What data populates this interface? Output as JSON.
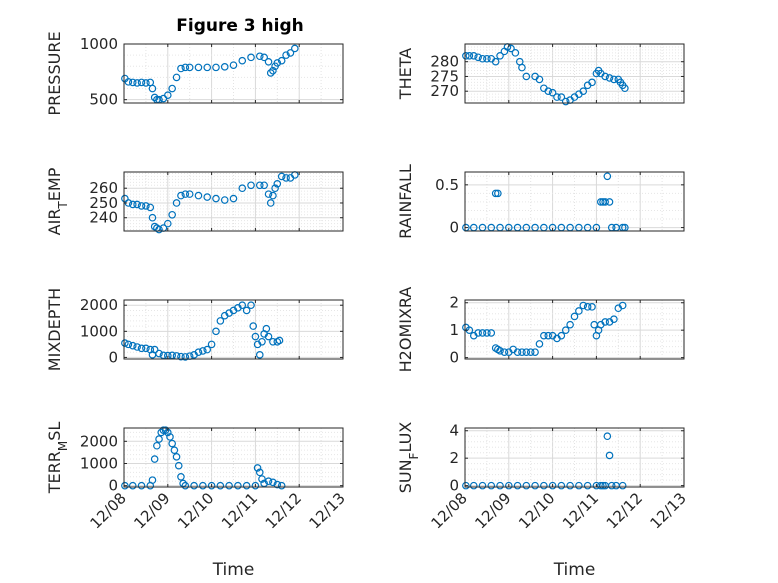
{
  "figure_title": "Figure 3 high",
  "chart_data": [
    {
      "type": "scatter",
      "ylabel": "PRESSURE",
      "ylim": [
        470,
        1000
      ],
      "yticks": [
        500,
        1000
      ],
      "xlim": [
        0,
        5
      ],
      "x_tick_labels": [
        "12/08",
        "12/09",
        "12/10",
        "12/11",
        "12/12",
        "12/13"
      ],
      "xlabel": "",
      "grid": true,
      "points": [
        [
          0.02,
          690
        ],
        [
          0.1,
          660
        ],
        [
          0.2,
          655
        ],
        [
          0.3,
          650
        ],
        [
          0.4,
          655
        ],
        [
          0.5,
          650
        ],
        [
          0.6,
          655
        ],
        [
          0.65,
          600
        ],
        [
          0.7,
          520
        ],
        [
          0.75,
          500
        ],
        [
          0.8,
          500
        ],
        [
          0.9,
          510
        ],
        [
          1.0,
          540
        ],
        [
          1.1,
          600
        ],
        [
          1.2,
          700
        ],
        [
          1.3,
          780
        ],
        [
          1.4,
          790
        ],
        [
          1.5,
          790
        ],
        [
          1.7,
          790
        ],
        [
          1.9,
          790
        ],
        [
          2.1,
          790
        ],
        [
          2.3,
          795
        ],
        [
          2.5,
          810
        ],
        [
          2.7,
          850
        ],
        [
          2.9,
          880
        ],
        [
          3.1,
          890
        ],
        [
          3.2,
          880
        ],
        [
          3.3,
          840
        ],
        [
          3.35,
          740
        ],
        [
          3.4,
          760
        ],
        [
          3.45,
          800
        ],
        [
          3.5,
          830
        ],
        [
          3.6,
          850
        ],
        [
          3.7,
          900
        ],
        [
          3.8,
          920
        ],
        [
          3.9,
          960
        ]
      ]
    },
    {
      "type": "scatter",
      "ylabel": "THETA",
      "ylim": [
        266,
        286
      ],
      "yticks": [
        270,
        275,
        280
      ],
      "xlim": [
        0,
        5
      ],
      "x_tick_labels": [
        "12/08",
        "12/09",
        "12/10",
        "12/11",
        "12/12",
        "12/13"
      ],
      "xlabel": "",
      "grid": true,
      "points": [
        [
          0.02,
          282
        ],
        [
          0.1,
          282
        ],
        [
          0.2,
          282
        ],
        [
          0.3,
          281.5
        ],
        [
          0.4,
          281
        ],
        [
          0.5,
          281
        ],
        [
          0.6,
          281
        ],
        [
          0.7,
          280
        ],
        [
          0.8,
          282
        ],
        [
          0.9,
          283.5
        ],
        [
          0.97,
          285
        ],
        [
          1.05,
          284.5
        ],
        [
          1.15,
          283
        ],
        [
          1.25,
          280
        ],
        [
          1.3,
          278
        ],
        [
          1.4,
          275
        ],
        [
          1.6,
          275
        ],
        [
          1.7,
          274
        ],
        [
          1.8,
          271
        ],
        [
          1.9,
          270
        ],
        [
          2.0,
          269.5
        ],
        [
          2.1,
          268
        ],
        [
          2.2,
          268
        ],
        [
          2.3,
          266.5
        ],
        [
          2.4,
          267
        ],
        [
          2.5,
          268
        ],
        [
          2.6,
          269
        ],
        [
          2.7,
          270
        ],
        [
          2.8,
          272
        ],
        [
          2.9,
          273
        ],
        [
          3.0,
          276
        ],
        [
          3.05,
          277
        ],
        [
          3.1,
          276
        ],
        [
          3.2,
          275
        ],
        [
          3.3,
          274.5
        ],
        [
          3.4,
          274
        ],
        [
          3.5,
          274
        ],
        [
          3.55,
          273
        ],
        [
          3.6,
          272
        ],
        [
          3.65,
          271
        ]
      ]
    },
    {
      "type": "scatter",
      "ylabel": "AIR_TEMP",
      "ylim": [
        231,
        271
      ],
      "yticks": [
        240,
        250,
        260
      ],
      "xlim": [
        0,
        5
      ],
      "x_tick_labels": [
        "12/08",
        "12/09",
        "12/10",
        "12/11",
        "12/12",
        "12/13"
      ],
      "xlabel": "",
      "grid": true,
      "points": [
        [
          0.02,
          253
        ],
        [
          0.1,
          250
        ],
        [
          0.2,
          249
        ],
        [
          0.3,
          249
        ],
        [
          0.4,
          248
        ],
        [
          0.5,
          248
        ],
        [
          0.6,
          247
        ],
        [
          0.65,
          240
        ],
        [
          0.7,
          234
        ],
        [
          0.75,
          233
        ],
        [
          0.8,
          232
        ],
        [
          0.9,
          233
        ],
        [
          1.0,
          236
        ],
        [
          1.1,
          242
        ],
        [
          1.2,
          250
        ],
        [
          1.3,
          255
        ],
        [
          1.4,
          256
        ],
        [
          1.5,
          256
        ],
        [
          1.7,
          255
        ],
        [
          1.9,
          254
        ],
        [
          2.1,
          253
        ],
        [
          2.3,
          252
        ],
        [
          2.5,
          253
        ],
        [
          2.7,
          260
        ],
        [
          2.9,
          262
        ],
        [
          3.1,
          262
        ],
        [
          3.2,
          262
        ],
        [
          3.3,
          256
        ],
        [
          3.35,
          250
        ],
        [
          3.4,
          255
        ],
        [
          3.45,
          260
        ],
        [
          3.5,
          263
        ],
        [
          3.6,
          268
        ],
        [
          3.7,
          267
        ],
        [
          3.8,
          267
        ],
        [
          3.9,
          269
        ]
      ]
    },
    {
      "type": "scatter",
      "ylabel": "RAINFALL",
      "ylim": [
        -0.04,
        0.65
      ],
      "yticks": [
        0,
        0.5
      ],
      "xlim": [
        0,
        5
      ],
      "x_tick_labels": [
        "12/08",
        "12/09",
        "12/10",
        "12/11",
        "12/12",
        "12/13"
      ],
      "xlabel": "",
      "grid": true,
      "points": [
        [
          0.02,
          0
        ],
        [
          0.2,
          0
        ],
        [
          0.4,
          0
        ],
        [
          0.6,
          0
        ],
        [
          0.7,
          0.4
        ],
        [
          0.75,
          0.4
        ],
        [
          0.8,
          0
        ],
        [
          1.0,
          0
        ],
        [
          1.2,
          0
        ],
        [
          1.4,
          0
        ],
        [
          1.6,
          0
        ],
        [
          1.8,
          0
        ],
        [
          2.0,
          0
        ],
        [
          2.2,
          0
        ],
        [
          2.4,
          0
        ],
        [
          2.6,
          0
        ],
        [
          2.8,
          0
        ],
        [
          3.0,
          0
        ],
        [
          3.1,
          0.3
        ],
        [
          3.15,
          0.3
        ],
        [
          3.2,
          0.3
        ],
        [
          3.25,
          0.6
        ],
        [
          3.3,
          0.3
        ],
        [
          3.35,
          0
        ],
        [
          3.45,
          0
        ],
        [
          3.6,
          0
        ],
        [
          3.65,
          0
        ]
      ]
    },
    {
      "type": "scatter",
      "ylabel": "MIXDEPTH",
      "ylim": [
        -60,
        2200
      ],
      "yticks": [
        0,
        1000,
        2000
      ],
      "xlim": [
        0,
        5
      ],
      "x_tick_labels": [
        "12/08",
        "12/09",
        "12/10",
        "12/11",
        "12/12",
        "12/13"
      ],
      "xlabel": "",
      "grid": true,
      "points": [
        [
          0.02,
          550
        ],
        [
          0.1,
          500
        ],
        [
          0.2,
          450
        ],
        [
          0.3,
          400
        ],
        [
          0.4,
          350
        ],
        [
          0.5,
          350
        ],
        [
          0.6,
          300
        ],
        [
          0.65,
          100
        ],
        [
          0.7,
          300
        ],
        [
          0.8,
          150
        ],
        [
          0.9,
          80
        ],
        [
          1.0,
          70
        ],
        [
          1.1,
          80
        ],
        [
          1.2,
          60
        ],
        [
          1.3,
          30
        ],
        [
          1.4,
          20
        ],
        [
          1.5,
          50
        ],
        [
          1.6,
          100
        ],
        [
          1.7,
          200
        ],
        [
          1.8,
          250
        ],
        [
          1.9,
          300
        ],
        [
          2.0,
          500
        ],
        [
          2.1,
          1000
        ],
        [
          2.2,
          1400
        ],
        [
          2.3,
          1600
        ],
        [
          2.4,
          1700
        ],
        [
          2.5,
          1800
        ],
        [
          2.6,
          1900
        ],
        [
          2.7,
          2000
        ],
        [
          2.8,
          1800
        ],
        [
          2.9,
          2000
        ],
        [
          2.95,
          1200
        ],
        [
          3.0,
          800
        ],
        [
          3.05,
          500
        ],
        [
          3.1,
          100
        ],
        [
          3.15,
          600
        ],
        [
          3.2,
          900
        ],
        [
          3.25,
          1100
        ],
        [
          3.3,
          800
        ],
        [
          3.4,
          600
        ],
        [
          3.5,
          600
        ],
        [
          3.55,
          650
        ]
      ]
    },
    {
      "type": "scatter",
      "ylabel": "H2OMIXRA",
      "ylim": [
        -0.05,
        2.1
      ],
      "yticks": [
        0,
        1,
        2
      ],
      "xlim": [
        0,
        5
      ],
      "x_tick_labels": [
        "12/08",
        "12/09",
        "12/10",
        "12/11",
        "12/12",
        "12/13"
      ],
      "xlabel": "",
      "grid": true,
      "points": [
        [
          0.02,
          1.1
        ],
        [
          0.1,
          1.0
        ],
        [
          0.2,
          0.8
        ],
        [
          0.3,
          0.9
        ],
        [
          0.4,
          0.9
        ],
        [
          0.5,
          0.9
        ],
        [
          0.6,
          0.9
        ],
        [
          0.7,
          0.35
        ],
        [
          0.75,
          0.3
        ],
        [
          0.8,
          0.25
        ],
        [
          0.9,
          0.2
        ],
        [
          1.0,
          0.2
        ],
        [
          1.1,
          0.3
        ],
        [
          1.2,
          0.2
        ],
        [
          1.3,
          0.2
        ],
        [
          1.4,
          0.2
        ],
        [
          1.5,
          0.2
        ],
        [
          1.6,
          0.2
        ],
        [
          1.7,
          0.5
        ],
        [
          1.8,
          0.8
        ],
        [
          1.9,
          0.8
        ],
        [
          2.0,
          0.8
        ],
        [
          2.1,
          0.7
        ],
        [
          2.2,
          0.8
        ],
        [
          2.3,
          1.0
        ],
        [
          2.4,
          1.2
        ],
        [
          2.5,
          1.5
        ],
        [
          2.6,
          1.7
        ],
        [
          2.7,
          1.9
        ],
        [
          2.8,
          1.85
        ],
        [
          2.9,
          1.85
        ],
        [
          2.95,
          1.2
        ],
        [
          3.0,
          0.8
        ],
        [
          3.05,
          1.0
        ],
        [
          3.1,
          1.2
        ],
        [
          3.2,
          1.3
        ],
        [
          3.3,
          1.3
        ],
        [
          3.4,
          1.4
        ],
        [
          3.5,
          1.8
        ],
        [
          3.6,
          1.9
        ]
      ]
    },
    {
      "type": "scatter",
      "ylabel": "TERR_MSL",
      "ylim": [
        -60,
        2600
      ],
      "yticks": [
        0,
        1000,
        2000
      ],
      "xlim": [
        0,
        5
      ],
      "x_tick_labels": [
        "12/08",
        "12/09",
        "12/10",
        "12/11",
        "12/12",
        "12/13"
      ],
      "xlabel": "Time",
      "grid": true,
      "points": [
        [
          0.02,
          0
        ],
        [
          0.2,
          0
        ],
        [
          0.4,
          0
        ],
        [
          0.6,
          0
        ],
        [
          0.65,
          250
        ],
        [
          0.7,
          1200
        ],
        [
          0.75,
          1800
        ],
        [
          0.8,
          2100
        ],
        [
          0.85,
          2400
        ],
        [
          0.9,
          2500
        ],
        [
          0.95,
          2500
        ],
        [
          1.0,
          2400
        ],
        [
          1.05,
          2200
        ],
        [
          1.1,
          1900
        ],
        [
          1.15,
          1600
        ],
        [
          1.2,
          1300
        ],
        [
          1.25,
          900
        ],
        [
          1.3,
          400
        ],
        [
          1.35,
          100
        ],
        [
          1.4,
          0
        ],
        [
          1.6,
          0
        ],
        [
          1.8,
          0
        ],
        [
          2.0,
          0
        ],
        [
          2.2,
          0
        ],
        [
          2.4,
          0
        ],
        [
          2.6,
          0
        ],
        [
          2.8,
          0
        ],
        [
          3.0,
          0
        ],
        [
          3.05,
          800
        ],
        [
          3.1,
          600
        ],
        [
          3.15,
          300
        ],
        [
          3.2,
          100
        ],
        [
          3.3,
          200
        ],
        [
          3.4,
          150
        ],
        [
          3.5,
          50
        ],
        [
          3.6,
          0
        ]
      ]
    },
    {
      "type": "scatter",
      "ylabel": "SUN_FLUX",
      "ylim": [
        -0.1,
        4.2
      ],
      "yticks": [
        0,
        2,
        4
      ],
      "xlim": [
        0,
        5
      ],
      "x_tick_labels": [
        "12/08",
        "12/09",
        "12/10",
        "12/11",
        "12/12",
        "12/13"
      ],
      "xlabel": "Time",
      "grid": true,
      "points": [
        [
          0.02,
          0
        ],
        [
          0.2,
          0
        ],
        [
          0.4,
          0
        ],
        [
          0.6,
          0
        ],
        [
          0.8,
          0
        ],
        [
          1.0,
          0
        ],
        [
          1.2,
          0
        ],
        [
          1.4,
          0
        ],
        [
          1.6,
          0
        ],
        [
          1.8,
          0
        ],
        [
          2.0,
          0
        ],
        [
          2.2,
          0
        ],
        [
          2.4,
          0
        ],
        [
          2.6,
          0
        ],
        [
          2.8,
          0
        ],
        [
          3.0,
          0
        ],
        [
          3.1,
          0
        ],
        [
          3.15,
          0
        ],
        [
          3.2,
          0
        ],
        [
          3.25,
          3.6
        ],
        [
          3.3,
          2.2
        ],
        [
          3.35,
          0
        ],
        [
          3.45,
          0
        ],
        [
          3.6,
          0
        ]
      ]
    }
  ]
}
